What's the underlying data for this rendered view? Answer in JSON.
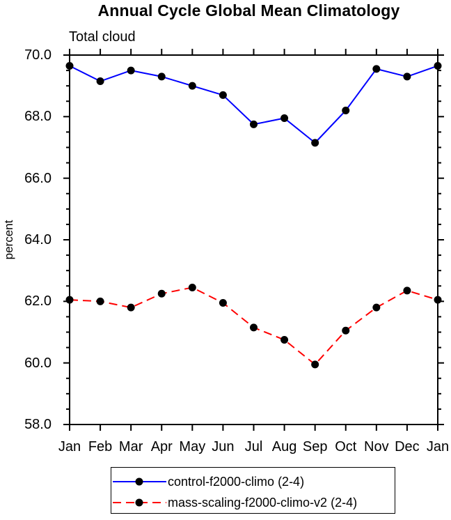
{
  "chart": {
    "title": "Annual Cycle Global Mean Climatology",
    "subtitle": "Total cloud",
    "ylabel": "percent"
  },
  "chart_data": {
    "type": "line",
    "title": "Annual Cycle Global Mean Climatology",
    "subtitle": "Total cloud",
    "xlabel": "",
    "ylabel": "percent",
    "x_categories": [
      "Jan",
      "Feb",
      "Mar",
      "Apr",
      "May",
      "Jun",
      "Jul",
      "Aug",
      "Sep",
      "Oct",
      "Nov",
      "Dec",
      "Jan"
    ],
    "ylim": [
      58.0,
      70.0
    ],
    "ytick_major": [
      58,
      60,
      62,
      64,
      66,
      68,
      70
    ],
    "ytick_labels": [
      "58.0",
      "60.0",
      "62.0",
      "64.0",
      "66.0",
      "68.0",
      "70.0"
    ],
    "ytick_minor_step": 0.5,
    "grid": false,
    "legend_position": "bottom",
    "frame_color": "#000000",
    "series": [
      {
        "name": "control-f2000-climo (2-4)",
        "color": "#0000ff",
        "style": "solid",
        "marker": "circle",
        "marker_color": "#000000",
        "values": [
          69.65,
          69.15,
          69.5,
          69.3,
          69.0,
          68.7,
          67.75,
          67.95,
          67.15,
          68.2,
          69.55,
          69.3,
          69.65
        ]
      },
      {
        "name": "mass-scaling-f2000-climo-v2 (2-4)",
        "color": "#ff0000",
        "style": "dashed",
        "marker": "circle",
        "marker_color": "#000000",
        "values": [
          62.05,
          62.0,
          61.8,
          62.25,
          62.45,
          61.95,
          61.15,
          60.75,
          59.95,
          61.05,
          61.8,
          62.35,
          62.05
        ]
      }
    ]
  }
}
